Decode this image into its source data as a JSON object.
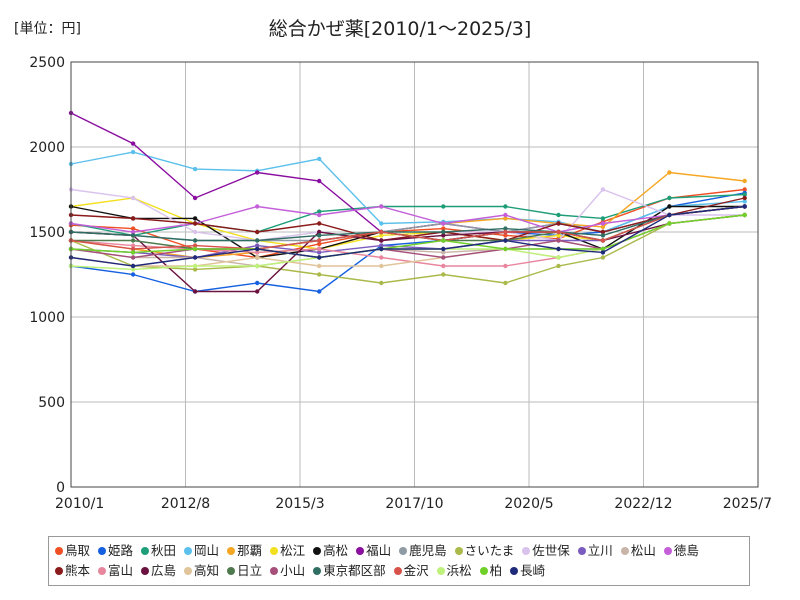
{
  "chart_data": {
    "type": "line",
    "title": "総合かぜ薬[2010/1～2025/3]",
    "unit_label": "[単位：円]",
    "ylim": [
      0,
      2500
    ],
    "y_ticks": [
      "0",
      "500",
      "1000",
      "1500",
      "2000",
      "2500"
    ],
    "x_ticks": [
      "2010/1",
      "2012/8",
      "2015/3",
      "2017/10",
      "2020/5",
      "2022/12",
      "2025/7"
    ],
    "grid": true,
    "legend_position": "bottom",
    "series": [
      {
        "name": "鳥取",
        "color": "#f04e23",
        "values": [
          1540,
          1520,
          1400,
          1350,
          1430,
          1500,
          1520,
          1480,
          1460,
          1560,
          1700,
          1750
        ]
      },
      {
        "name": "姫路",
        "color": "#1560e0",
        "values": [
          1300,
          1250,
          1150,
          1200,
          1150,
          1420,
          1450,
          1500,
          1480,
          1500,
          1650,
          1730
        ]
      },
      {
        "name": "秋田",
        "color": "#1e9e78",
        "values": [
          1550,
          1480,
          1550,
          1500,
          1620,
          1650,
          1650,
          1650,
          1600,
          1580,
          1700,
          1720
        ]
      },
      {
        "name": "岡山",
        "color": "#5bc0eb",
        "values": [
          1900,
          1970,
          1870,
          1860,
          1930,
          1550,
          1560,
          1580,
          1560,
          1500,
          1650,
          1680
        ]
      },
      {
        "name": "那覇",
        "color": "#f5a623",
        "values": [
          1450,
          1400,
          1350,
          1380,
          1400,
          1500,
          1550,
          1580,
          1550,
          1530,
          1850,
          1800
        ]
      },
      {
        "name": "松江",
        "color": "#f2e01e",
        "values": [
          1650,
          1700,
          1550,
          1450,
          1400,
          1480,
          1500,
          1450,
          1480,
          1450,
          1600,
          1650
        ]
      },
      {
        "name": "高松",
        "color": "#111111",
        "values": [
          1650,
          1580,
          1580,
          1350,
          1400,
          1500,
          1450,
          1500,
          1500,
          1400,
          1650,
          1650
        ]
      },
      {
        "name": "福山",
        "color": "#8a0ea0",
        "values": [
          2200,
          2020,
          1700,
          1850,
          1800,
          1500,
          1550,
          1500,
          1550,
          1500,
          1600,
          1650
        ]
      },
      {
        "name": "鹿児島",
        "color": "#8e9ba5",
        "values": [
          1500,
          1480,
          1450,
          1450,
          1450,
          1500,
          1550,
          1500,
          1550,
          1500,
          1600,
          1650
        ]
      },
      {
        "name": "さいたま",
        "color": "#aab94a",
        "values": [
          1450,
          1300,
          1280,
          1300,
          1250,
          1200,
          1250,
          1200,
          1300,
          1350,
          1550,
          1600
        ]
      },
      {
        "name": "佐世保",
        "color": "#d9c2ec",
        "values": [
          1750,
          1700,
          1500,
          1450,
          1500,
          1450,
          1500,
          1500,
          1450,
          1750,
          1600,
          1600
        ]
      },
      {
        "name": "立川",
        "color": "#7a5bbf",
        "values": [
          1400,
          1380,
          1350,
          1420,
          1380,
          1420,
          1400,
          1450,
          1450,
          1450,
          1600,
          1650
        ]
      },
      {
        "name": "松山",
        "color": "#c9b4a8",
        "values": [
          1400,
          1350,
          1350,
          1300,
          1350,
          1400,
          1380,
          1400,
          1400,
          1400,
          1550,
          1600
        ]
      },
      {
        "name": "徳島",
        "color": "#c45fd9",
        "values": [
          1550,
          1500,
          1550,
          1650,
          1600,
          1650,
          1550,
          1600,
          1500,
          1550,
          1600,
          1650
        ]
      },
      {
        "name": "熊本",
        "color": "#8b1a1a",
        "values": [
          1600,
          1580,
          1550,
          1500,
          1550,
          1450,
          1500,
          1450,
          1550,
          1500,
          1600,
          1700
        ]
      },
      {
        "name": "富山",
        "color": "#e8869e",
        "values": [
          1450,
          1420,
          1400,
          1380,
          1400,
          1350,
          1300,
          1300,
          1350,
          1400,
          1550,
          1600
        ]
      },
      {
        "name": "広島",
        "color": "#6b1240",
        "values": [
          1500,
          1480,
          1150,
          1150,
          1500,
          1450,
          1480,
          1500,
          1500,
          1450,
          1550,
          1600
        ]
      },
      {
        "name": "高知",
        "color": "#e0c49a",
        "values": [
          1350,
          1300,
          1300,
          1350,
          1300,
          1300,
          1350,
          1400,
          1350,
          1400,
          1550,
          1600
        ]
      },
      {
        "name": "日立",
        "color": "#4e7a4e",
        "values": [
          1450,
          1450,
          1400,
          1400,
          1450,
          1500,
          1450,
          1450,
          1500,
          1450,
          1600,
          1650
        ]
      },
      {
        "name": "小山",
        "color": "#a54f7a",
        "values": [
          1400,
          1350,
          1400,
          1400,
          1350,
          1400,
          1350,
          1400,
          1450,
          1400,
          1550,
          1600
        ]
      },
      {
        "name": "東京都区部",
        "color": "#2f6e63",
        "values": [
          1500,
          1480,
          1450,
          1450,
          1480,
          1500,
          1500,
          1520,
          1500,
          1480,
          1600,
          1650
        ]
      },
      {
        "name": "金沢",
        "color": "#d6524a",
        "values": [
          1450,
          1400,
          1420,
          1400,
          1450,
          1500,
          1450,
          1500,
          1500,
          1450,
          1600,
          1650
        ]
      },
      {
        "name": "浜松",
        "color": "#bef27a",
        "values": [
          1300,
          1280,
          1300,
          1300,
          1350,
          1400,
          1400,
          1400,
          1350,
          1400,
          1550,
          1600
        ]
      },
      {
        "name": "柏",
        "color": "#70d02a",
        "values": [
          1400,
          1380,
          1400,
          1400,
          1350,
          1400,
          1450,
          1400,
          1400,
          1400,
          1550,
          1600
        ]
      },
      {
        "name": "長崎",
        "color": "#1f2a7a",
        "values": [
          1350,
          1300,
          1350,
          1400,
          1350,
          1400,
          1400,
          1450,
          1400,
          1380,
          1600,
          1650
        ]
      }
    ],
    "x": [
      2010.0,
      2011.4,
      2012.8,
      2014.2,
      2015.6,
      2017.0,
      2018.4,
      2019.8,
      2021.0,
      2022.0,
      2023.5,
      2025.2
    ]
  }
}
